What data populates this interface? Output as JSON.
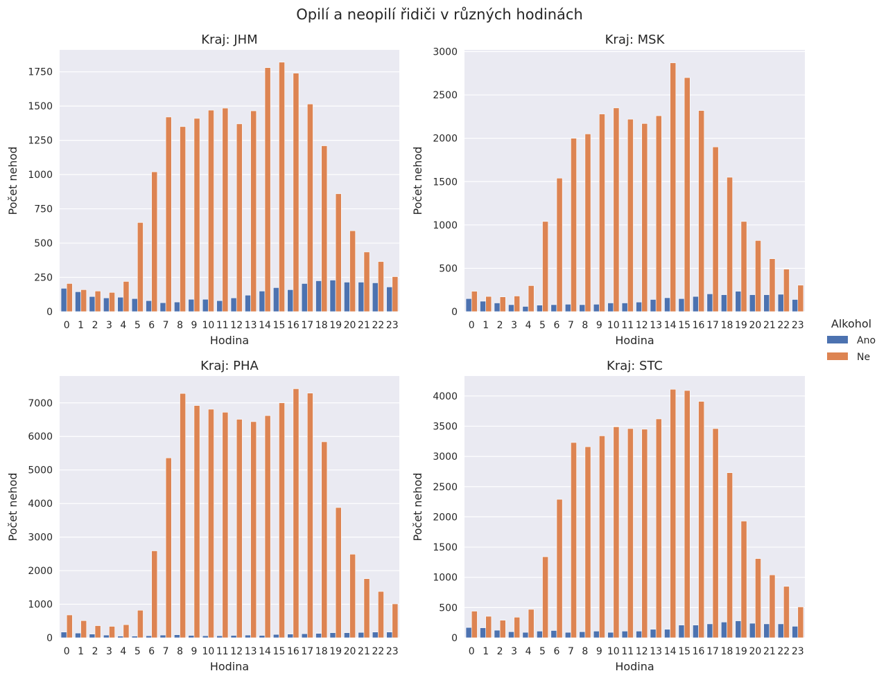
{
  "title": "Opilí a neopilí řidiči v různých hodinách",
  "legend": {
    "title": "Alkohol",
    "placement": "right",
    "entries": [
      {
        "label": "Ano",
        "color": "#4c72b0"
      },
      {
        "label": "Ne",
        "color": "#dd8452"
      }
    ]
  },
  "colors": {
    "Ano": "#4c72b0",
    "Ne": "#dd8452",
    "background": "#eaeaf2",
    "grid": "#ffffff"
  },
  "chart_data": [
    {
      "type": "bar",
      "title": "Kraj: JHM",
      "xlabel": "Hodina",
      "ylabel": "Počet nehod",
      "ylim": [
        0,
        1910
      ],
      "yticks": [
        0,
        250,
        500,
        750,
        1000,
        1250,
        1500,
        1750
      ],
      "grid": true,
      "categories": [
        "0",
        "1",
        "2",
        "3",
        "4",
        "5",
        "6",
        "7",
        "8",
        "9",
        "10",
        "11",
        "12",
        "13",
        "14",
        "15",
        "16",
        "17",
        "18",
        "19",
        "20",
        "21",
        "22",
        "23"
      ],
      "series": [
        {
          "name": "Ano",
          "values": [
            170,
            145,
            110,
            100,
            105,
            95,
            80,
            65,
            70,
            90,
            90,
            80,
            100,
            120,
            150,
            175,
            160,
            205,
            225,
            230,
            215,
            215,
            210,
            180
          ]
        },
        {
          "name": "Ne",
          "values": [
            205,
            160,
            150,
            140,
            220,
            650,
            1020,
            1420,
            1350,
            1410,
            1470,
            1485,
            1370,
            1465,
            1780,
            1820,
            1740,
            1515,
            1210,
            860,
            590,
            435,
            365,
            255
          ]
        }
      ]
    },
    {
      "type": "bar",
      "title": "Kraj: MSK",
      "xlabel": "Hodina",
      "ylabel": "Počet nehod",
      "ylim": [
        0,
        3020
      ],
      "yticks": [
        0,
        500,
        1000,
        1500,
        2000,
        2500,
        3000
      ],
      "grid": true,
      "categories": [
        "0",
        "1",
        "2",
        "3",
        "4",
        "5",
        "6",
        "7",
        "8",
        "9",
        "10",
        "11",
        "12",
        "13",
        "14",
        "15",
        "16",
        "17",
        "18",
        "19",
        "20",
        "21",
        "22",
        "23"
      ],
      "series": [
        {
          "name": "Ano",
          "values": [
            150,
            120,
            100,
            80,
            60,
            75,
            80,
            85,
            80,
            85,
            100,
            100,
            110,
            140,
            160,
            150,
            175,
            205,
            195,
            235,
            195,
            195,
            200,
            140
          ]
        },
        {
          "name": "Ne",
          "values": [
            235,
            175,
            170,
            180,
            300,
            1040,
            1540,
            2000,
            2050,
            2280,
            2350,
            2220,
            2170,
            2260,
            2870,
            2700,
            2320,
            1900,
            1550,
            1040,
            820,
            610,
            490,
            305
          ]
        }
      ]
    },
    {
      "type": "bar",
      "title": "Kraj: PHA",
      "xlabel": "Hodina",
      "ylabel": "Počet nehod",
      "ylim": [
        0,
        7800
      ],
      "yticks": [
        0,
        1000,
        2000,
        3000,
        4000,
        5000,
        6000,
        7000
      ],
      "grid": true,
      "categories": [
        "0",
        "1",
        "2",
        "3",
        "4",
        "5",
        "6",
        "7",
        "8",
        "9",
        "10",
        "11",
        "12",
        "13",
        "14",
        "15",
        "16",
        "17",
        "18",
        "19",
        "20",
        "21",
        "22",
        "23"
      ],
      "series": [
        {
          "name": "Ano",
          "values": [
            170,
            140,
            110,
            80,
            50,
            50,
            60,
            80,
            90,
            70,
            60,
            60,
            70,
            80,
            70,
            100,
            110,
            120,
            130,
            150,
            150,
            160,
            170,
            170
          ]
        },
        {
          "name": "Ne",
          "values": [
            680,
            510,
            360,
            340,
            390,
            820,
            2590,
            5360,
            7280,
            6920,
            6810,
            6720,
            6510,
            6440,
            6620,
            7000,
            7420,
            7290,
            5840,
            3880,
            2490,
            1760,
            1380,
            1010
          ]
        }
      ]
    },
    {
      "type": "bar",
      "title": "Kraj: STC",
      "xlabel": "Hodina",
      "ylabel": "Počet nehod",
      "ylim": [
        0,
        4330
      ],
      "yticks": [
        0,
        500,
        1000,
        1500,
        2000,
        2500,
        3000,
        3500,
        4000
      ],
      "grid": true,
      "categories": [
        "0",
        "1",
        "2",
        "3",
        "4",
        "5",
        "6",
        "7",
        "8",
        "9",
        "10",
        "11",
        "12",
        "13",
        "14",
        "15",
        "16",
        "17",
        "18",
        "19",
        "20",
        "21",
        "22",
        "23"
      ],
      "series": [
        {
          "name": "Ano",
          "values": [
            170,
            165,
            125,
            100,
            90,
            110,
            120,
            90,
            100,
            110,
            90,
            110,
            110,
            140,
            140,
            210,
            210,
            230,
            260,
            280,
            240,
            230,
            230,
            190
          ]
        },
        {
          "name": "Ne",
          "values": [
            440,
            355,
            290,
            340,
            470,
            1340,
            2290,
            3230,
            3160,
            3340,
            3490,
            3460,
            3450,
            3620,
            4110,
            4090,
            3910,
            3460,
            2730,
            1930,
            1310,
            1040,
            850,
            510
          ]
        }
      ]
    }
  ]
}
